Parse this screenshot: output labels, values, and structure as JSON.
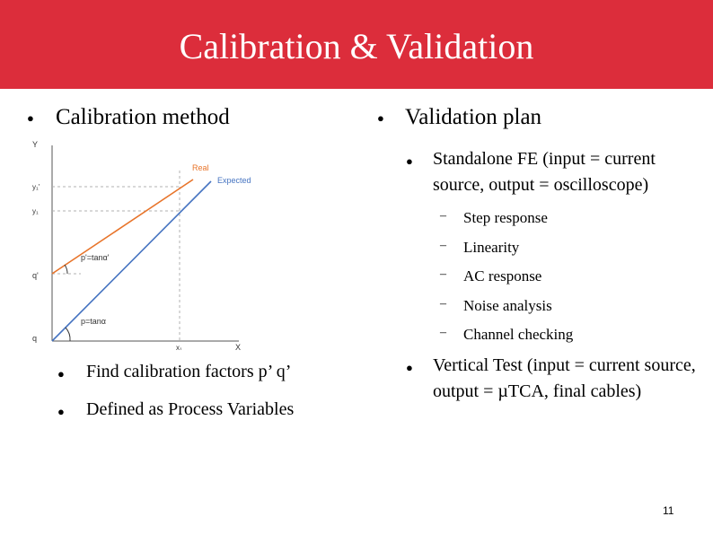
{
  "slide": {
    "title": "Calibration & Validation",
    "page_number": "11"
  },
  "left": {
    "heading": "Calibration method",
    "items": [
      "Find calibration factors p’ q’",
      "Defined as Process Variables"
    ]
  },
  "right": {
    "heading": "Validation plan",
    "fe": {
      "label": "Standalone FE (input = current source, output = oscilloscope)",
      "tests": [
        "Step response",
        "Linearity",
        "AC response",
        "Noise analysis",
        "Channel checking"
      ]
    },
    "vertical": "Vertical Test (input = current source, output = µTCA, final cables)"
  },
  "bullet_glyph": "●",
  "dash_glyph": "–",
  "figure": {
    "y_axis": "Y",
    "x_axis": "X",
    "y1_prime": "y₁'",
    "y1": "y₁",
    "q_prime": "q'",
    "q": "q",
    "x1": "x₁",
    "real": "Real",
    "expected": "Expected",
    "slope_prime": "p'=tanα'",
    "slope": "p=tanα",
    "colors": {
      "real": "#e8742a",
      "expected": "#4674c1",
      "grid": "#b0b0b0"
    }
  }
}
